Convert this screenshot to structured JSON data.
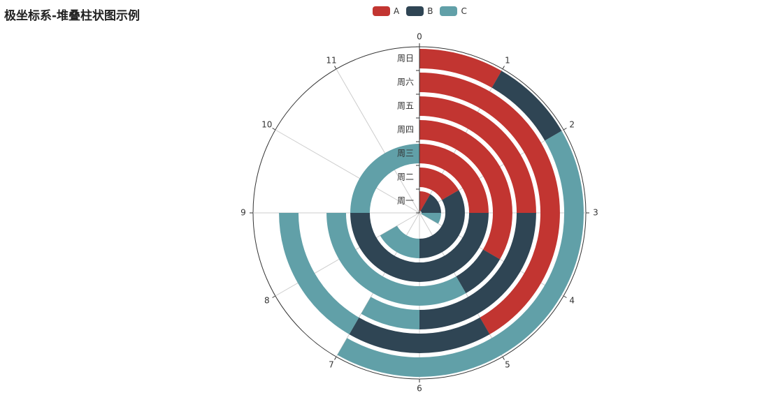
{
  "chart_data": {
    "type": "polar-stacked-bar",
    "title": "极坐标系-堆叠柱状图示例",
    "angle_axis": {
      "min": 0,
      "max": 12,
      "labels": [
        "0",
        "1",
        "2",
        "3",
        "4",
        "5",
        "6",
        "7",
        "8",
        "9",
        "10",
        "11"
      ]
    },
    "radius_axis": {
      "categories": [
        "周一",
        "周二",
        "周三",
        "周四",
        "周五",
        "周六",
        "周日"
      ]
    },
    "series": [
      {
        "name": "A",
        "color": "#c23531",
        "values": [
          1,
          2,
          3,
          4,
          3,
          5,
          1
        ]
      },
      {
        "name": "B",
        "color": "#2f4554",
        "values": [
          2,
          4,
          6,
          1,
          3,
          2,
          1
        ]
      },
      {
        "name": "C",
        "color": "#61a0a8",
        "values": [
          1,
          2,
          3,
          4,
          1,
          2,
          5
        ]
      }
    ],
    "legend_position": "top-center"
  }
}
